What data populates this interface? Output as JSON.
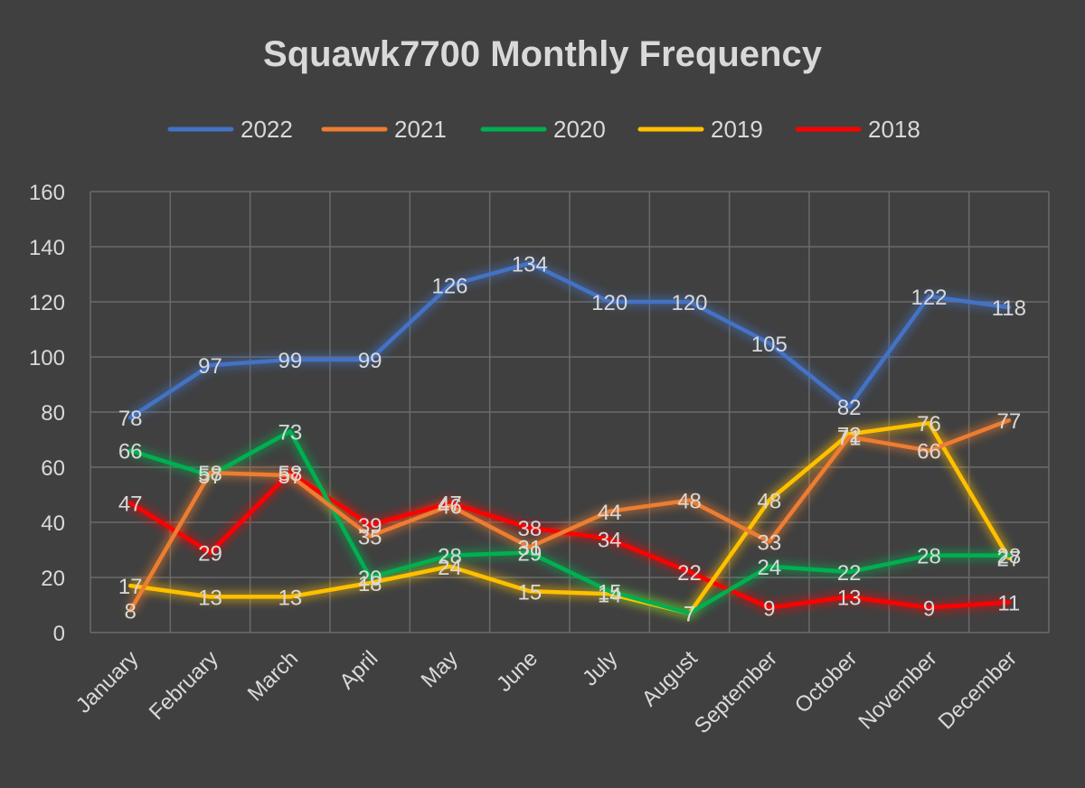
{
  "chart_data": {
    "type": "line",
    "title": "Squawk7700 Monthly Frequency",
    "xlabel": "",
    "ylabel": "",
    "ylim": [
      0,
      160
    ],
    "yticks": [
      0,
      20,
      40,
      60,
      80,
      100,
      120,
      140,
      160
    ],
    "grid": true,
    "legend_position": "top",
    "categories": [
      "January",
      "February",
      "March",
      "April",
      "May",
      "June",
      "July",
      "August",
      "September",
      "October",
      "November",
      "December"
    ],
    "series": [
      {
        "name": "2022",
        "color": "#4472c4",
        "values": [
          78,
          97,
          99,
          99,
          126,
          134,
          120,
          120,
          105,
          82,
          122,
          118
        ]
      },
      {
        "name": "2021",
        "color": "#ed7d31",
        "values": [
          8,
          58,
          57,
          35,
          46,
          31,
          44,
          48,
          33,
          71,
          66,
          77
        ]
      },
      {
        "name": "2020",
        "color": "#00b050",
        "values": [
          66,
          57,
          73,
          20,
          28,
          29,
          15,
          7,
          24,
          22,
          28,
          28
        ]
      },
      {
        "name": "2019",
        "color": "#ffc000",
        "values": [
          17,
          13,
          13,
          18,
          24,
          15,
          14,
          7,
          48,
          72,
          76,
          27
        ]
      },
      {
        "name": "2018",
        "color": "#ff0000",
        "values": [
          47,
          29,
          58,
          39,
          47,
          38,
          34,
          22,
          9,
          13,
          9,
          11
        ]
      }
    ]
  }
}
